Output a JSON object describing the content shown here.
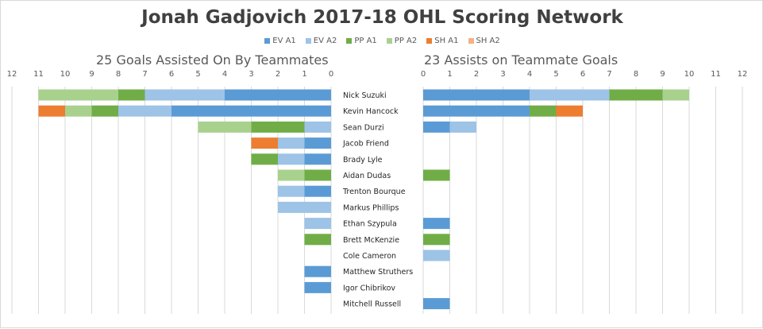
{
  "title": "Jonah Gadjovich 2017-18 OHL Scoring Network",
  "legend": [
    {
      "label": "EV A1",
      "color": "#5b9bd5"
    },
    {
      "label": "EV A2",
      "color": "#9dc3e6"
    },
    {
      "label": "PP A1",
      "color": "#70ad47"
    },
    {
      "label": "PP A2",
      "color": "#a9d18e"
    },
    {
      "label": "SH A1",
      "color": "#ed7d31"
    },
    {
      "label": "SH A2",
      "color": "#f4b183"
    }
  ],
  "chart_data": [
    {
      "type": "bar",
      "orientation": "horizontal",
      "stacked": true,
      "direction": "reversed",
      "title": "25 Goals Assisted On By Teammates",
      "categories": [
        "Nick Suzuki",
        "Kevin Hancock",
        "Sean Durzi",
        "Jacob Friend",
        "Brady Lyle",
        "Aidan Dudas",
        "Trenton Bourque",
        "Markus Phillips",
        "Ethan Szypula",
        "Brett McKenzie",
        "Cole Cameron",
        "Matthew Struthers",
        "Igor Chibrikov",
        "Mitchell Russell"
      ],
      "xlim": [
        0,
        12
      ],
      "xticks": [
        "0",
        "1",
        "2",
        "3",
        "4",
        "5",
        "6",
        "7",
        "8",
        "9",
        "10",
        "11",
        "12"
      ],
      "grid": true,
      "series": [
        {
          "name": "EV A1",
          "values": [
            4,
            6,
            0,
            1,
            1,
            0,
            1,
            0,
            0,
            0,
            0,
            1,
            1,
            0
          ]
        },
        {
          "name": "EV A2",
          "values": [
            3,
            2,
            1,
            1,
            1,
            0,
            1,
            2,
            1,
            0,
            0,
            0,
            0,
            0
          ]
        },
        {
          "name": "PP A1",
          "values": [
            1,
            1,
            2,
            0,
            1,
            1,
            0,
            0,
            0,
            1,
            0,
            0,
            0,
            0
          ]
        },
        {
          "name": "PP A2",
          "values": [
            3,
            1,
            2,
            0,
            0,
            1,
            0,
            0,
            0,
            0,
            0,
            0,
            0,
            0
          ]
        },
        {
          "name": "SH A1",
          "values": [
            0,
            1,
            0,
            1,
            0,
            0,
            0,
            0,
            0,
            0,
            0,
            0,
            0,
            0
          ]
        },
        {
          "name": "SH A2",
          "values": [
            0,
            0,
            0,
            0,
            0,
            0,
            0,
            0,
            0,
            0,
            0,
            0,
            0,
            0
          ]
        }
      ]
    },
    {
      "type": "bar",
      "orientation": "horizontal",
      "stacked": true,
      "title": "23 Assists on Teammate Goals",
      "categories": [
        "Nick Suzuki",
        "Kevin Hancock",
        "Sean Durzi",
        "Jacob Friend",
        "Brady Lyle",
        "Aidan Dudas",
        "Trenton Bourque",
        "Markus Phillips",
        "Ethan Szypula",
        "Brett McKenzie",
        "Cole Cameron",
        "Matthew Struthers",
        "Igor Chibrikov",
        "Mitchell Russell"
      ],
      "xlim": [
        0,
        12
      ],
      "xticks": [
        "0",
        "1",
        "2",
        "3",
        "4",
        "5",
        "6",
        "7",
        "8",
        "9",
        "10",
        "11",
        "12"
      ],
      "grid": true,
      "series": [
        {
          "name": "EV A1",
          "values": [
            4,
            4,
            1,
            0,
            0,
            0,
            0,
            0,
            1,
            0,
            0,
            0,
            0,
            1
          ]
        },
        {
          "name": "EV A2",
          "values": [
            3,
            0,
            1,
            0,
            0,
            0,
            0,
            0,
            0,
            0,
            1,
            0,
            0,
            0
          ]
        },
        {
          "name": "PP A1",
          "values": [
            2,
            1,
            0,
            0,
            0,
            1,
            0,
            0,
            0,
            1,
            0,
            0,
            0,
            0
          ]
        },
        {
          "name": "PP A2",
          "values": [
            1,
            0,
            0,
            0,
            0,
            0,
            0,
            0,
            0,
            0,
            0,
            0,
            0,
            0
          ]
        },
        {
          "name": "SH A1",
          "values": [
            0,
            1,
            0,
            0,
            0,
            0,
            0,
            0,
            0,
            0,
            0,
            0,
            0,
            0
          ]
        },
        {
          "name": "SH A2",
          "values": [
            0,
            0,
            0,
            0,
            0,
            0,
            0,
            0,
            0,
            0,
            0,
            0,
            0,
            0
          ]
        }
      ]
    }
  ]
}
